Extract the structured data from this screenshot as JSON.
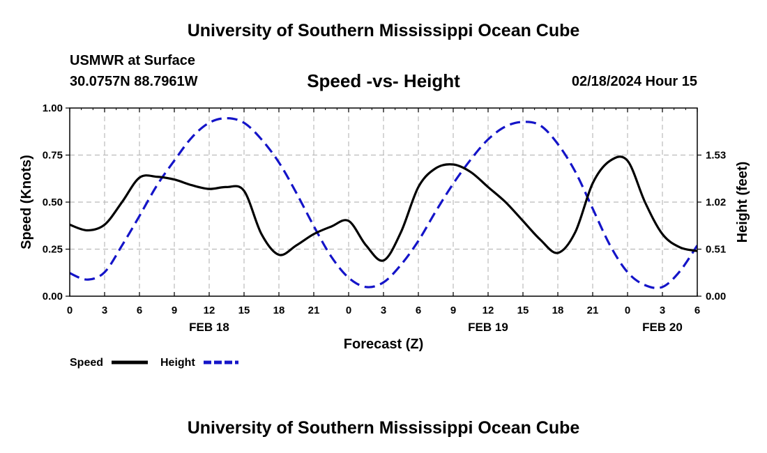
{
  "header": {
    "title": "University of Southern Mississippi Ocean Cube",
    "station": "USMWR at Surface",
    "coordinates": "30.0757N  88.7961W",
    "chart_title": "Speed -vs- Height",
    "datetime": "02/18/2024 Hour 15"
  },
  "footer": {
    "title": "University of Southern Mississippi Ocean Cube"
  },
  "colors": {
    "speed": "#000000",
    "height": "#1414c8",
    "grid": "#bbbbbb"
  },
  "chart_data": {
    "type": "line",
    "title": "Speed -vs- Height",
    "xlabel": "Forecast (Z)",
    "ylabel": "Speed (Knots)",
    "y2label": "Height (feet)",
    "x_range": [
      0,
      54
    ],
    "ylim": [
      0,
      1.0
    ],
    "y2lim": [
      0,
      2.04
    ],
    "x_ticks": [
      0,
      3,
      6,
      9,
      12,
      15,
      18,
      21,
      24,
      27,
      30,
      33,
      36,
      39,
      42,
      45,
      48,
      51,
      54
    ],
    "x_tick_labels": [
      "0",
      "3",
      "6",
      "9",
      "12",
      "15",
      "18",
      "21",
      "0",
      "3",
      "6",
      "9",
      "12",
      "15",
      "18",
      "21",
      "0",
      "3",
      "6"
    ],
    "day_labels": [
      {
        "label": "FEB 18",
        "x": 12
      },
      {
        "label": "FEB 19",
        "x": 36
      },
      {
        "label": "FEB 20",
        "x": 51
      }
    ],
    "y_ticks": [
      0,
      0.25,
      0.5,
      0.75,
      1.0
    ],
    "y_tick_labels": [
      "0.00",
      "0.25",
      "0.50",
      "0.75",
      "1.00"
    ],
    "y2_ticks": [
      0,
      0.51,
      1.02,
      1.53
    ],
    "y2_tick_labels": [
      "0.00",
      "0.51",
      "1.02",
      "1.53"
    ],
    "grid": true,
    "legend": {
      "position": "bottom-left",
      "entries": [
        "Speed",
        "Height"
      ]
    },
    "series": [
      {
        "name": "Speed",
        "axis": "left",
        "style": "solid",
        "x": [
          0,
          1.5,
          3,
          4.5,
          6,
          7.5,
          9,
          10.5,
          12,
          13.5,
          15,
          16.5,
          18,
          19.5,
          21,
          22.5,
          24,
          25.5,
          27,
          28.5,
          30,
          31.5,
          33,
          34.5,
          36,
          37.5,
          39,
          40.5,
          42,
          43.5,
          45,
          46.5,
          48,
          49.5,
          51,
          52.5,
          54
        ],
        "values": [
          0.38,
          0.35,
          0.38,
          0.5,
          0.63,
          0.635,
          0.62,
          0.59,
          0.57,
          0.58,
          0.56,
          0.33,
          0.22,
          0.27,
          0.33,
          0.37,
          0.4,
          0.27,
          0.19,
          0.34,
          0.58,
          0.68,
          0.7,
          0.66,
          0.58,
          0.5,
          0.4,
          0.3,
          0.23,
          0.34,
          0.6,
          0.72,
          0.72,
          0.5,
          0.33,
          0.26,
          0.24
        ]
      },
      {
        "name": "Height",
        "axis": "right",
        "style": "dashed",
        "x": [
          0,
          1.5,
          3,
          4.5,
          6,
          7.5,
          9,
          10.5,
          12,
          13.5,
          15,
          16.5,
          18,
          19.5,
          21,
          22.5,
          24,
          25.5,
          27,
          28.5,
          30,
          31.5,
          33,
          34.5,
          36,
          37.5,
          39,
          40.5,
          42,
          43.5,
          45,
          46.5,
          48,
          49.5,
          51,
          52.5,
          54
        ],
        "values": [
          0.25,
          0.18,
          0.26,
          0.55,
          0.87,
          1.2,
          1.47,
          1.72,
          1.88,
          1.93,
          1.88,
          1.7,
          1.45,
          1.12,
          0.76,
          0.43,
          0.2,
          0.1,
          0.15,
          0.34,
          0.6,
          0.92,
          1.22,
          1.48,
          1.7,
          1.84,
          1.89,
          1.85,
          1.65,
          1.35,
          0.95,
          0.55,
          0.26,
          0.12,
          0.1,
          0.27,
          0.55
        ]
      }
    ]
  }
}
